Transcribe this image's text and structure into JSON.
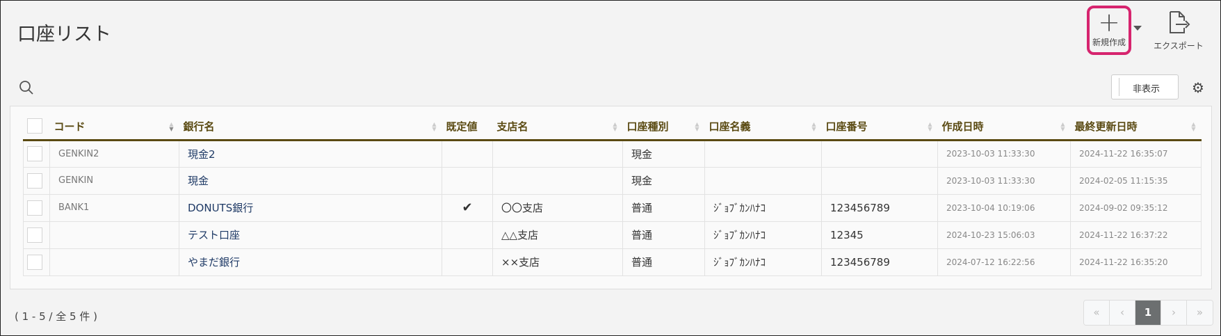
{
  "header": {
    "title": "口座リスト",
    "new_label": "新規作成",
    "export_label": "エクスポート"
  },
  "toolbar": {
    "hide_label": "非表示"
  },
  "table": {
    "columns": [
      "コード",
      "銀行名",
      "既定値",
      "支店名",
      "口座種別",
      "口座名義",
      "口座番号",
      "作成日時",
      "最終更新日時"
    ],
    "rows": [
      {
        "code": "GENKIN2",
        "bank": "現金2",
        "default": "",
        "branch": "",
        "type": "現金",
        "holder": "",
        "number": "",
        "created": "2023-10-03 11:33:30",
        "updated": "2024-11-22 16:35:07"
      },
      {
        "code": "GENKIN",
        "bank": "現金",
        "default": "",
        "branch": "",
        "type": "現金",
        "holder": "",
        "number": "",
        "created": "2023-10-03 11:33:30",
        "updated": "2024-02-05 11:15:35"
      },
      {
        "code": "BANK1",
        "bank": "DONUTS銀行",
        "default": "✔",
        "branch": "〇〇支店",
        "type": "普通",
        "holder": "ｼﾞｮﾌﾞｶﾝﾊﾅｺ",
        "number": "123456789",
        "created": "2023-10-04 10:19:06",
        "updated": "2024-09-02 09:35:12"
      },
      {
        "code": "",
        "bank": "テスト口座",
        "default": "",
        "branch": "△△支店",
        "type": "普通",
        "holder": "ｼﾞｮﾌﾞｶﾝﾊﾅｺ",
        "number": "12345",
        "created": "2024-10-23 15:06:03",
        "updated": "2024-11-22 16:37:22"
      },
      {
        "code": "",
        "bank": "やまだ銀行",
        "default": "",
        "branch": "××支店",
        "type": "普通",
        "holder": "ｼﾞｮﾌﾞｶﾝﾊﾅｺ",
        "number": "123456789",
        "created": "2024-07-12 16:22:56",
        "updated": "2024-11-22 16:35:20"
      }
    ]
  },
  "footer": {
    "count": "( 1 - 5 / 全 5 件 )",
    "pager": [
      "«",
      "‹",
      "1",
      "›",
      "»"
    ],
    "current_page": "1"
  },
  "colors": {
    "accent": "#d6246e",
    "header_text": "#5a4a12"
  }
}
